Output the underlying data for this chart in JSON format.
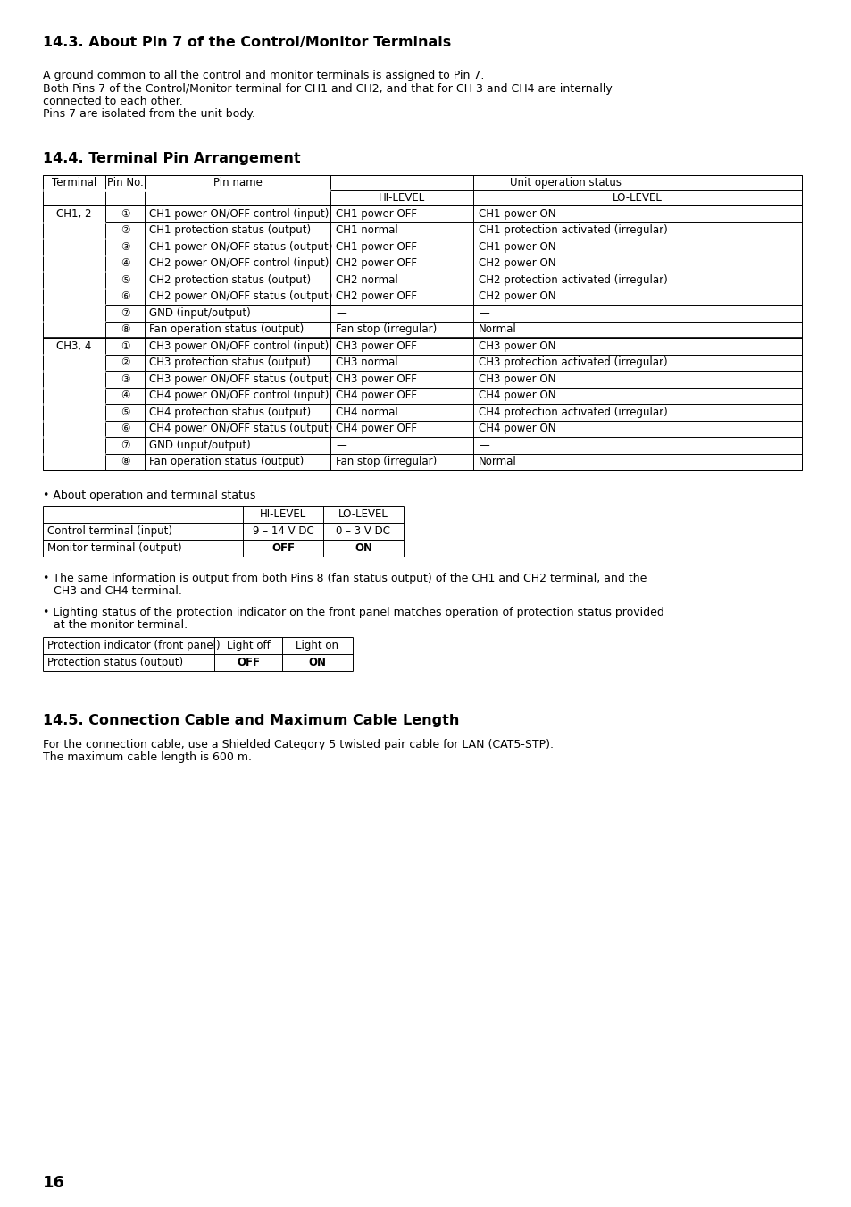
{
  "page_number": "16",
  "background_color": "#ffffff",
  "section_14_3_title": "14.3. About Pin 7 of the Control/Monitor Terminals",
  "section_14_3_lines": [
    "A ground common to all the control and monitor terminals is assigned to Pin 7.",
    "Both Pins 7 of the Control/Monitor terminal for CH1 and CH2, and that for CH 3 and CH4 are internally",
    "connected to each other.",
    "Pins 7 are isolated from the unit body."
  ],
  "section_14_4_title": "14.4. Terminal Pin Arrangement",
  "main_table_rows": [
    [
      "CH1, 2",
      "①",
      "CH1 power ON/OFF control (input)",
      "CH1 power OFF",
      "CH1 power ON"
    ],
    [
      "",
      "②",
      "CH1 protection status (output)",
      "CH1 normal",
      "CH1 protection activated (irregular)"
    ],
    [
      "",
      "③",
      "CH1 power ON/OFF status (output)",
      "CH1 power OFF",
      "CH1 power ON"
    ],
    [
      "",
      "④",
      "CH2 power ON/OFF control (input)",
      "CH2 power OFF",
      "CH2 power ON"
    ],
    [
      "",
      "⑤",
      "CH2 protection status (output)",
      "CH2 normal",
      "CH2 protection activated (irregular)"
    ],
    [
      "",
      "⑥",
      "CH2 power ON/OFF status (output)",
      "CH2 power OFF",
      "CH2 power ON"
    ],
    [
      "",
      "⑦",
      "GND (input/output)",
      "—",
      "—"
    ],
    [
      "",
      "⑧",
      "Fan operation status (output)",
      "Fan stop (irregular)",
      "Normal"
    ],
    [
      "CH3, 4",
      "①",
      "CH3 power ON/OFF control (input)",
      "CH3 power OFF",
      "CH3 power ON"
    ],
    [
      "",
      "②",
      "CH3 protection status (output)",
      "CH3 normal",
      "CH3 protection activated (irregular)"
    ],
    [
      "",
      "③",
      "CH3 power ON/OFF status (output)",
      "CH3 power OFF",
      "CH3 power ON"
    ],
    [
      "",
      "④",
      "CH4 power ON/OFF control (input)",
      "CH4 power OFF",
      "CH4 power ON"
    ],
    [
      "",
      "⑤",
      "CH4 protection status (output)",
      "CH4 normal",
      "CH4 protection activated (irregular)"
    ],
    [
      "",
      "⑥",
      "CH4 power ON/OFF status (output)",
      "CH4 power OFF",
      "CH4 power ON"
    ],
    [
      "",
      "⑦",
      "GND (input/output)",
      "—",
      "—"
    ],
    [
      "",
      "⑧",
      "Fan operation status (output)",
      "Fan stop (irregular)",
      "Normal"
    ]
  ],
  "operation_table_rows": [
    [
      "Control terminal (input)",
      "9 – 14 V DC",
      "0 – 3 V DC"
    ],
    [
      "Monitor terminal (output)",
      "OFF",
      "ON"
    ]
  ],
  "protection_table_rows": [
    [
      "Protection indicator (front panel)",
      "Light off",
      "Light on"
    ],
    [
      "Protection status (output)",
      "OFF",
      "ON"
    ]
  ],
  "section_14_5_title": "14.5. Connection Cable and Maximum Cable Length",
  "section_14_5_lines": [
    "For the connection cable, use a Shielded Category 5 twisted pair cable for LAN (CAT5-STP).",
    "The maximum cable length is 600 m."
  ]
}
